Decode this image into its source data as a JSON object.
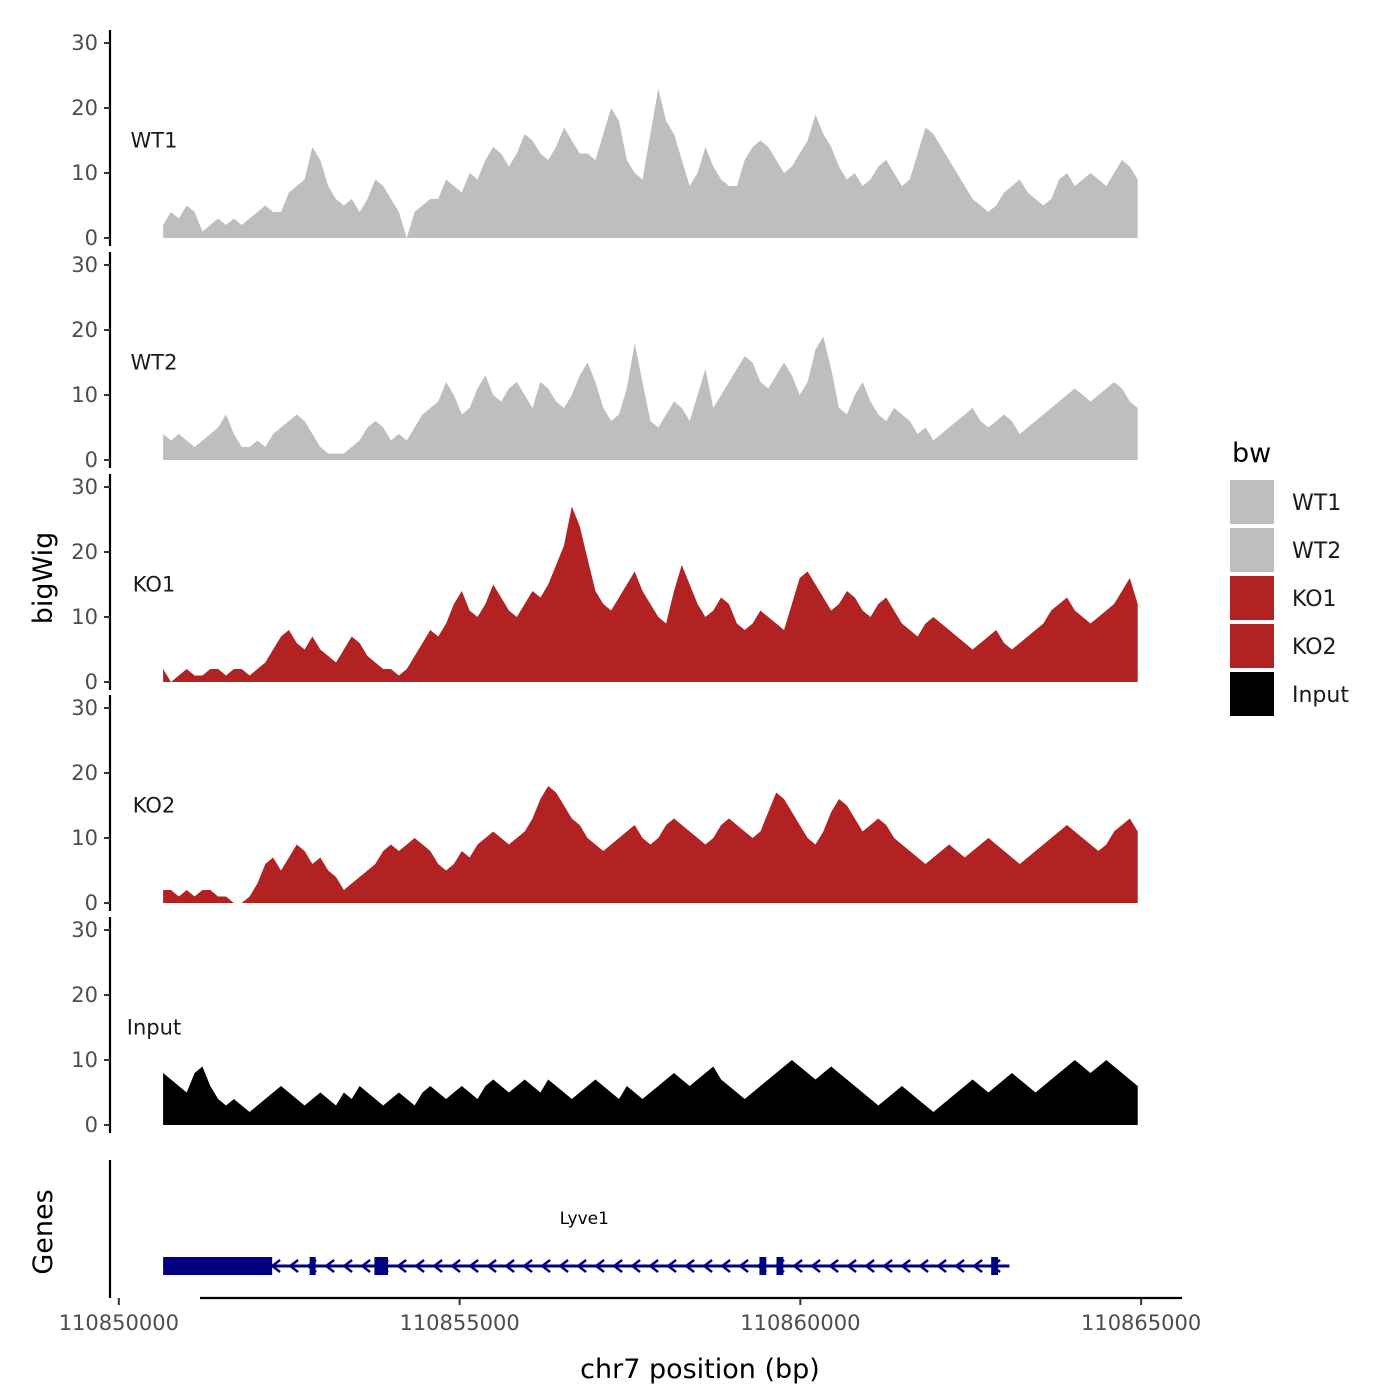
{
  "chart_data": {
    "type": "area",
    "xlabel": "chr7 position (bp)",
    "ylabel": "bigWig",
    "genes_label": "Genes",
    "xlim": [
      110849900,
      110865600
    ],
    "ylim": [
      0,
      32
    ],
    "x_ticks": [
      110850000,
      110855000,
      110860000,
      110865000
    ],
    "x_tick_labels": [
      "110850000",
      "110855000",
      "110860000",
      "110865000"
    ],
    "y_ticks": [
      0,
      10,
      20,
      30
    ],
    "y_tick_labels": [
      "0",
      "10",
      "20",
      "30"
    ],
    "legend": {
      "title": "bw",
      "placement": "right",
      "entries": [
        "WT1",
        "WT2",
        "KO1",
        "KO2",
        "Input"
      ]
    },
    "x_start": 110850650,
    "x_end": 110864950,
    "series": [
      {
        "name": "WT1",
        "color": "#bebebe",
        "values": [
          2,
          4,
          3,
          5,
          4,
          1,
          2,
          3,
          2,
          3,
          2,
          3,
          4,
          5,
          4,
          4,
          7,
          8,
          9,
          14,
          12,
          8,
          6,
          5,
          6,
          4,
          6,
          9,
          8,
          6,
          4,
          0,
          4,
          5,
          6,
          6,
          9,
          8,
          7,
          10,
          9,
          12,
          14,
          13,
          11,
          13,
          16,
          15,
          13,
          12,
          14,
          17,
          15,
          13,
          13,
          12,
          16,
          20,
          18,
          12,
          10,
          9,
          16,
          23,
          18,
          16,
          12,
          8,
          10,
          14,
          11,
          9,
          8,
          8,
          12,
          14,
          15,
          14,
          12,
          10,
          11,
          13,
          15,
          19,
          16,
          14,
          11,
          9,
          10,
          8,
          9,
          11,
          12,
          10,
          8,
          9,
          13,
          17,
          16,
          14,
          12,
          10,
          8,
          6,
          5,
          4,
          5,
          7,
          8,
          9,
          7,
          6,
          5,
          6,
          9,
          10,
          8,
          9,
          10,
          9,
          8,
          10,
          12,
          11,
          9
        ]
      },
      {
        "name": "WT2",
        "color": "#bebebe",
        "values": [
          4,
          3,
          4,
          3,
          2,
          3,
          4,
          5,
          7,
          4,
          2,
          2,
          3,
          2,
          4,
          5,
          6,
          7,
          6,
          4,
          2,
          1,
          1,
          1,
          2,
          3,
          5,
          6,
          5,
          3,
          4,
          3,
          5,
          7,
          8,
          9,
          12,
          10,
          7,
          8,
          11,
          13,
          10,
          9,
          11,
          12,
          10,
          8,
          12,
          11,
          9,
          8,
          10,
          13,
          15,
          12,
          8,
          6,
          7,
          11,
          18,
          12,
          6,
          5,
          7,
          9,
          8,
          6,
          10,
          14,
          8,
          10,
          12,
          14,
          16,
          15,
          12,
          11,
          13,
          15,
          13,
          10,
          12,
          17,
          19,
          14,
          8,
          7,
          10,
          12,
          9,
          7,
          6,
          8,
          7,
          6,
          4,
          5,
          3,
          4,
          5,
          6,
          7,
          8,
          6,
          5,
          6,
          7,
          6,
          4,
          5,
          6,
          7,
          8,
          9,
          10,
          11,
          10,
          9,
          10,
          11,
          12,
          11,
          9,
          8
        ]
      },
      {
        "name": "KO1",
        "color": "#b22222",
        "values": [
          2,
          0,
          1,
          2,
          1,
          1,
          2,
          2,
          1,
          2,
          2,
          1,
          2,
          3,
          5,
          7,
          8,
          6,
          5,
          7,
          5,
          4,
          3,
          5,
          7,
          6,
          4,
          3,
          2,
          2,
          1,
          2,
          4,
          6,
          8,
          7,
          9,
          12,
          14,
          11,
          10,
          12,
          15,
          13,
          11,
          10,
          12,
          14,
          13,
          15,
          18,
          21,
          27,
          24,
          19,
          14,
          12,
          11,
          13,
          15,
          17,
          14,
          12,
          10,
          9,
          14,
          18,
          15,
          12,
          10,
          11,
          13,
          12,
          9,
          8,
          9,
          11,
          10,
          9,
          8,
          12,
          16,
          17,
          15,
          13,
          11,
          12,
          14,
          13,
          11,
          10,
          12,
          13,
          11,
          9,
          8,
          7,
          9,
          10,
          9,
          8,
          7,
          6,
          5,
          6,
          7,
          8,
          6,
          5,
          6,
          7,
          8,
          9,
          11,
          12,
          13,
          11,
          10,
          9,
          10,
          11,
          12,
          14,
          16,
          12
        ]
      },
      {
        "name": "KO2",
        "color": "#b22222",
        "values": [
          2,
          2,
          1,
          2,
          1,
          2,
          2,
          1,
          1,
          0,
          0,
          1,
          3,
          6,
          7,
          5,
          7,
          9,
          8,
          6,
          7,
          5,
          4,
          2,
          3,
          4,
          5,
          6,
          8,
          9,
          8,
          9,
          10,
          9,
          8,
          6,
          5,
          6,
          8,
          7,
          9,
          10,
          11,
          10,
          9,
          10,
          11,
          13,
          16,
          18,
          17,
          15,
          13,
          12,
          10,
          9,
          8,
          9,
          10,
          11,
          12,
          10,
          9,
          10,
          12,
          13,
          12,
          11,
          10,
          9,
          10,
          12,
          13,
          12,
          11,
          10,
          11,
          14,
          17,
          16,
          14,
          12,
          10,
          9,
          11,
          14,
          16,
          15,
          13,
          11,
          12,
          13,
          12,
          10,
          9,
          8,
          7,
          6,
          7,
          8,
          9,
          8,
          7,
          8,
          9,
          10,
          9,
          8,
          7,
          6,
          7,
          8,
          9,
          10,
          11,
          12,
          11,
          10,
          9,
          8,
          9,
          11,
          12,
          13,
          11
        ]
      },
      {
        "name": "Input",
        "color": "#000000",
        "values": [
          8,
          7,
          6,
          5,
          8,
          9,
          6,
          4,
          3,
          4,
          3,
          2,
          3,
          4,
          5,
          6,
          5,
          4,
          3,
          4,
          5,
          4,
          3,
          5,
          4,
          6,
          5,
          4,
          3,
          4,
          5,
          4,
          3,
          5,
          6,
          5,
          4,
          5,
          6,
          5,
          4,
          6,
          7,
          6,
          5,
          6,
          7,
          6,
          5,
          7,
          6,
          5,
          4,
          5,
          6,
          7,
          6,
          5,
          4,
          6,
          5,
          4,
          5,
          6,
          7,
          8,
          7,
          6,
          7,
          8,
          9,
          7,
          6,
          5,
          4,
          5,
          6,
          7,
          8,
          9,
          10,
          9,
          8,
          7,
          8,
          9,
          8,
          7,
          6,
          5,
          4,
          3,
          4,
          5,
          6,
          5,
          4,
          3,
          2,
          3,
          4,
          5,
          6,
          7,
          6,
          5,
          6,
          7,
          8,
          7,
          6,
          5,
          6,
          7,
          8,
          9,
          10,
          9,
          8,
          9,
          10,
          9,
          8,
          7,
          6
        ]
      }
    ],
    "gene": {
      "name": "Lyve1",
      "color": "#000080",
      "strand": "-",
      "start": 110850650,
      "end": 110862950,
      "exons": [
        [
          110850650,
          110852250
        ],
        [
          110852800,
          110852850
        ],
        [
          110853750,
          110853950
        ],
        [
          110859400,
          110859500
        ],
        [
          110859650,
          110859750
        ],
        [
          110862800,
          110862900
        ]
      ]
    }
  }
}
